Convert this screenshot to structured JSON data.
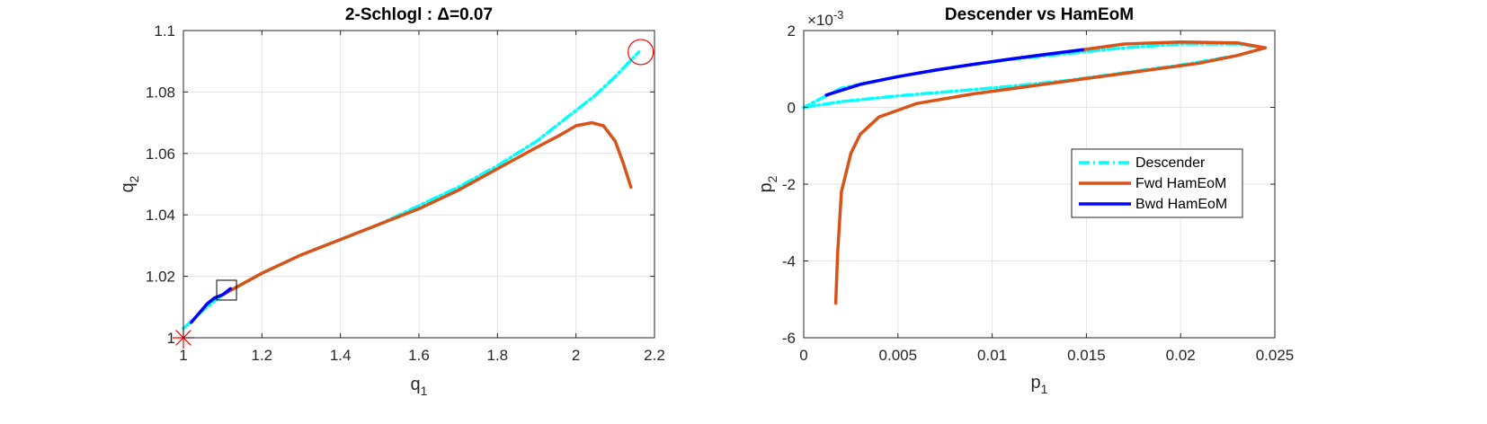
{
  "chart_data": [
    {
      "type": "line",
      "title": "2-Schlogl : Δ=0.07",
      "xlabel": "q",
      "xlabel_sub": "1",
      "ylabel": "q",
      "ylabel_sub": "2",
      "xlim": [
        1,
        2.2
      ],
      "ylim": [
        1,
        1.1
      ],
      "xticks": [
        1,
        1.2,
        1.4,
        1.6,
        1.8,
        2,
        2.2
      ],
      "xtick_labels": [
        "1",
        "1.2",
        "1.4",
        "1.6",
        "1.8",
        "2",
        "2.2"
      ],
      "yticks": [
        1,
        1.02,
        1.04,
        1.06,
        1.08,
        1.1
      ],
      "ytick_labels": [
        "1",
        "1.02",
        "1.04",
        "1.06",
        "1.08",
        "1.1"
      ],
      "grid": true,
      "series": [
        {
          "color": "#00FFFF",
          "style": "dashdot",
          "x": [
            1.0,
            1.05,
            1.1,
            1.2,
            1.3,
            1.4,
            1.5,
            1.6,
            1.7,
            1.8,
            1.9,
            2.0,
            2.05,
            2.1,
            2.16
          ],
          "y": [
            1.003,
            1.009,
            1.014,
            1.021,
            1.027,
            1.032,
            1.037,
            1.043,
            1.049,
            1.056,
            1.064,
            1.074,
            1.079,
            1.085,
            1.093
          ]
        },
        {
          "color": "#D95319",
          "style": "solid",
          "x": [
            1.1,
            1.2,
            1.3,
            1.4,
            1.5,
            1.6,
            1.7,
            1.8,
            1.9,
            1.96,
            2.0,
            2.04,
            2.07,
            2.1,
            2.12,
            2.14
          ],
          "y": [
            1.014,
            1.021,
            1.027,
            1.032,
            1.037,
            1.042,
            1.048,
            1.055,
            1.062,
            1.066,
            1.069,
            1.07,
            1.069,
            1.064,
            1.057,
            1.049
          ]
        },
        {
          "color": "#0000FF",
          "style": "solid",
          "x": [
            1.02,
            1.04,
            1.06,
            1.08,
            1.1,
            1.12
          ],
          "y": [
            1.005,
            1.008,
            1.011,
            1.013,
            1.014,
            1.016
          ]
        }
      ],
      "markers": [
        {
          "shape": "star",
          "color": "#FF0000",
          "x": 1.0,
          "y": 1.0
        },
        {
          "shape": "square",
          "color": "#000000",
          "x": 1.11,
          "y": 1.0155
        },
        {
          "shape": "circle",
          "color": "#FF0000",
          "x": 2.165,
          "y": 1.093
        }
      ]
    },
    {
      "type": "line",
      "title": "Descender vs HamEoM",
      "xlabel": "p",
      "xlabel_sub": "1",
      "ylabel": "p",
      "ylabel_sub": "2",
      "exponent_base": "×10",
      "exponent_power": "-3",
      "xlim": [
        0,
        0.025
      ],
      "ylim": [
        -6,
        2
      ],
      "xticks": [
        0,
        0.005,
        0.01,
        0.015,
        0.02,
        0.025
      ],
      "xtick_labels": [
        "0",
        "0.005",
        "0.01",
        "0.015",
        "0.02",
        "0.025"
      ],
      "yticks": [
        -6,
        -4,
        -2,
        0,
        2
      ],
      "ytick_labels": [
        "-6",
        "-4",
        "-2",
        "0",
        "2"
      ],
      "grid": true,
      "legend_position": "right-middle",
      "series": [
        {
          "name": "Descender",
          "color": "#00FFFF",
          "style": "dashdot",
          "x": [
            0.0,
            0.002,
            0.005,
            0.008,
            0.011,
            0.014,
            0.017,
            0.02,
            0.023,
            0.0245,
            0.023,
            0.02,
            0.017,
            0.014,
            0.011,
            0.008,
            0.005,
            0.002,
            0.0
          ],
          "y": [
            0.0,
            0.15,
            0.3,
            0.42,
            0.55,
            0.7,
            0.9,
            1.1,
            1.35,
            1.55,
            1.65,
            1.65,
            1.55,
            1.4,
            1.25,
            1.05,
            0.8,
            0.5,
            0.0
          ]
        },
        {
          "name": "Fwd HamEoM",
          "color": "#D95319",
          "style": "solid",
          "x": [
            0.0017,
            0.0018,
            0.002,
            0.0025,
            0.003,
            0.004,
            0.006,
            0.009,
            0.012,
            0.015,
            0.018,
            0.021,
            0.023,
            0.0245,
            0.023,
            0.02,
            0.017,
            0.0148
          ],
          "y": [
            -5.1,
            -3.8,
            -2.2,
            -1.2,
            -0.7,
            -0.25,
            0.1,
            0.35,
            0.55,
            0.75,
            0.95,
            1.15,
            1.35,
            1.55,
            1.68,
            1.7,
            1.65,
            1.5
          ]
        },
        {
          "name": "Bwd HamEoM",
          "color": "#0000FF",
          "style": "solid",
          "x": [
            0.0012,
            0.003,
            0.005,
            0.007,
            0.009,
            0.011,
            0.013,
            0.0148
          ],
          "y": [
            0.32,
            0.6,
            0.8,
            0.97,
            1.12,
            1.26,
            1.39,
            1.5
          ]
        }
      ]
    }
  ]
}
